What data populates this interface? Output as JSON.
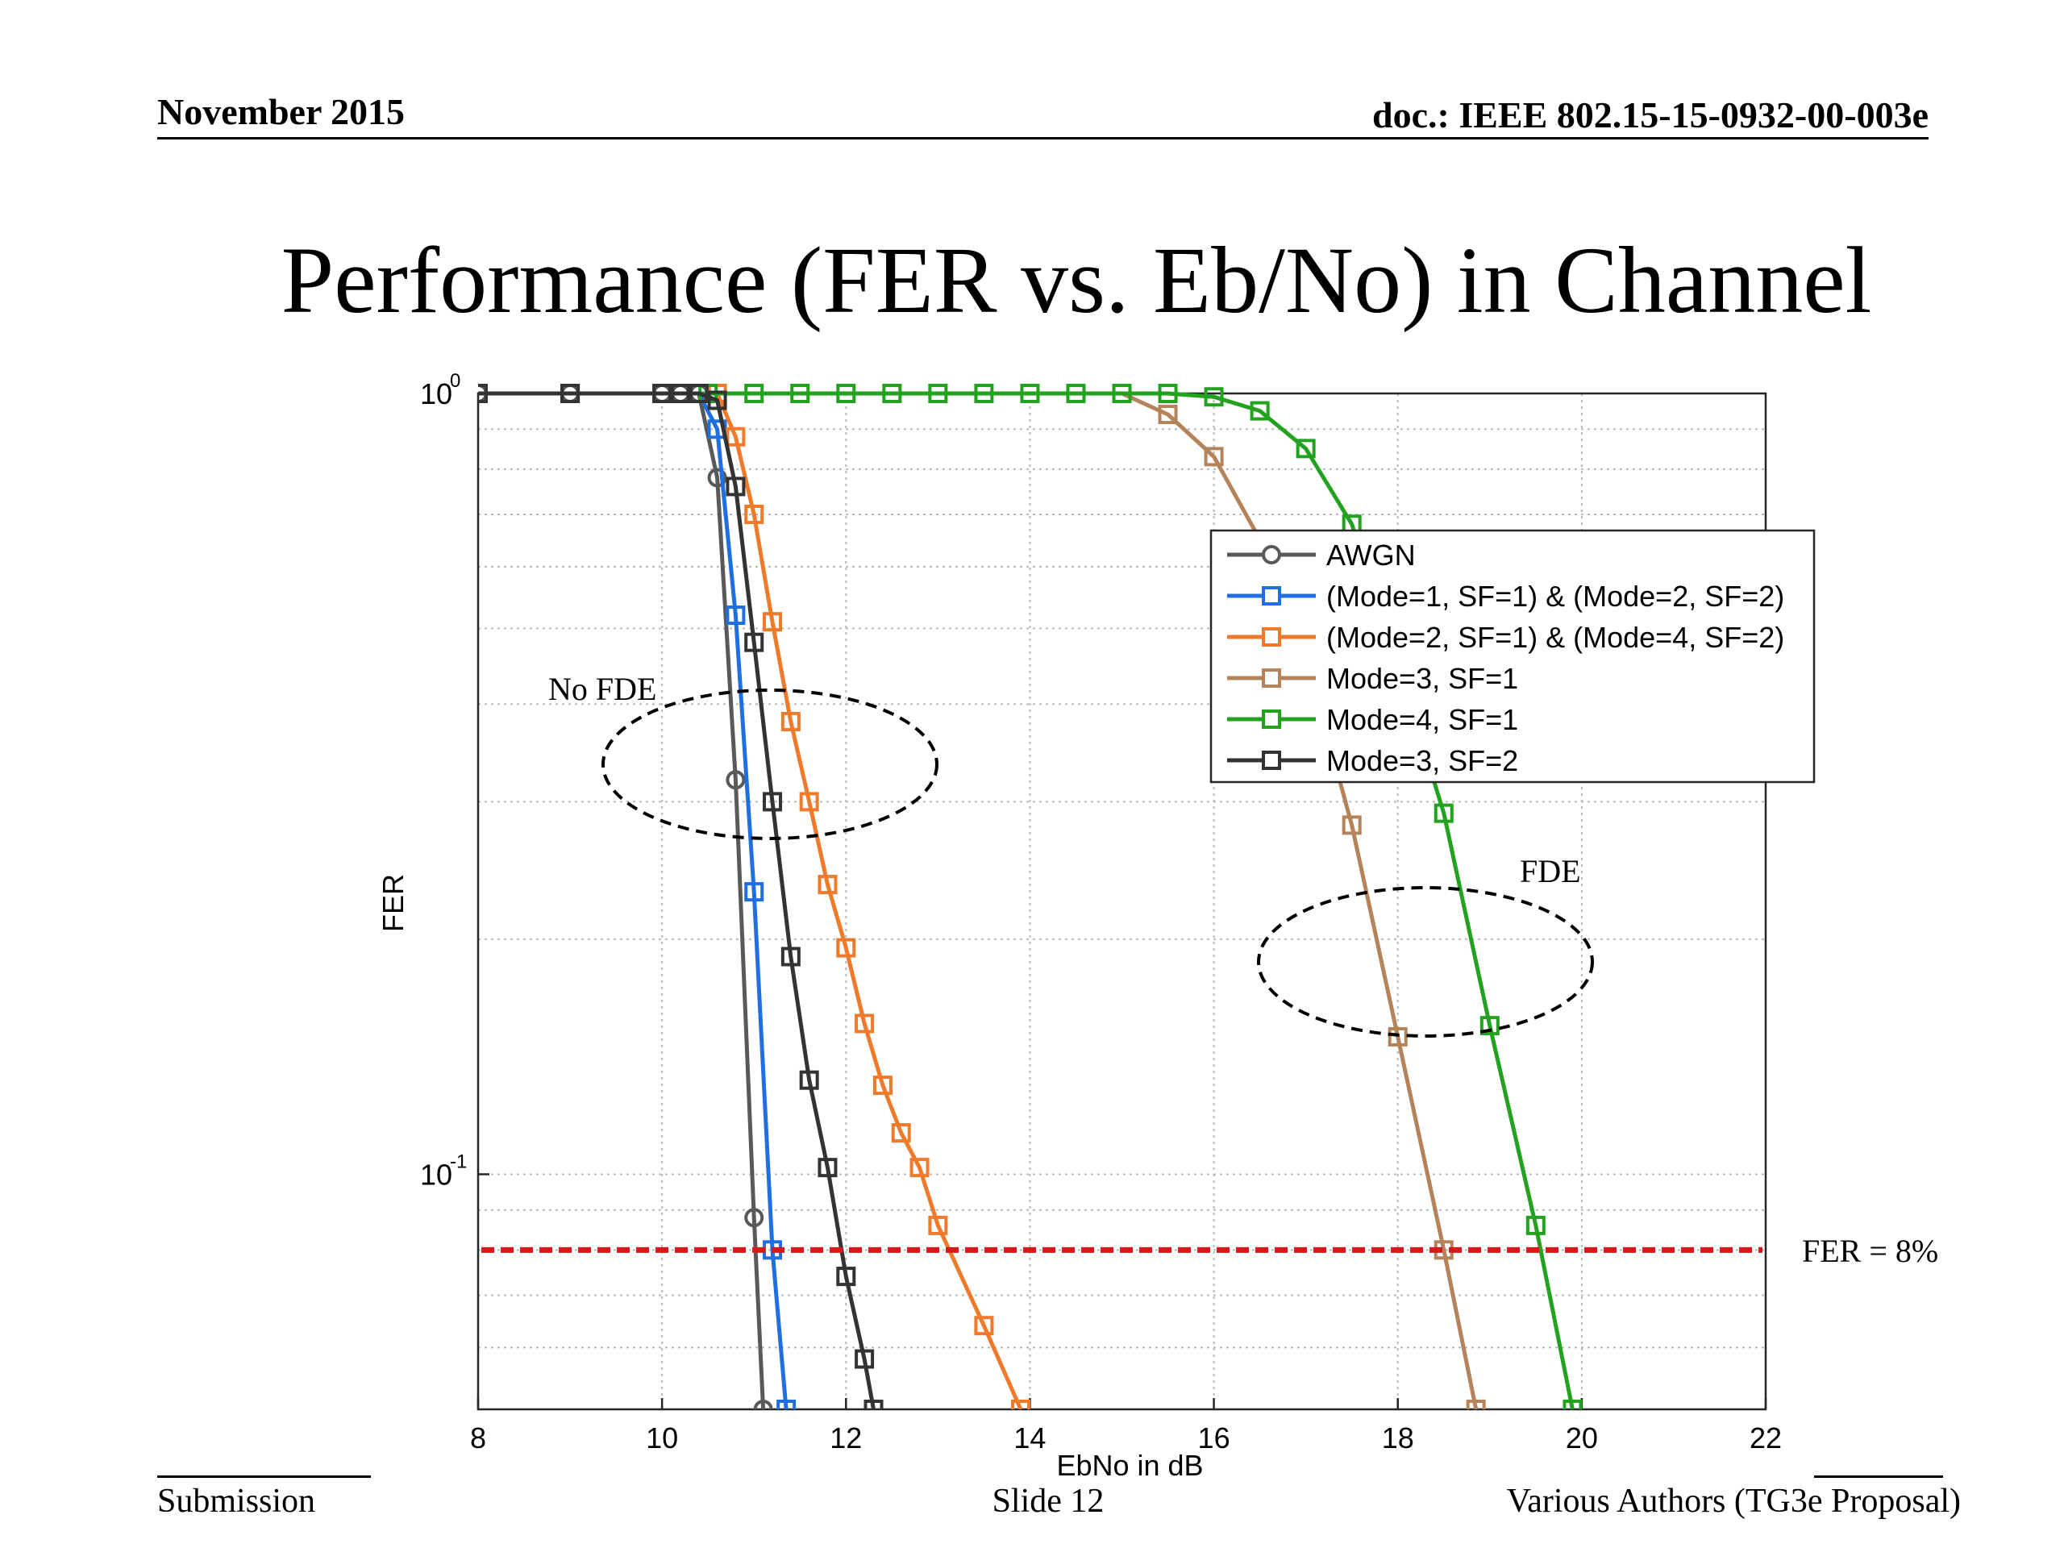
{
  "header": {
    "date": "November 2015",
    "doc": "doc.: IEEE 802.15-15-0932-00-003e"
  },
  "title": "Performance (FER vs. Eb/No) in Channel",
  "footer": {
    "left": "Submission",
    "center": "Slide 12",
    "right": "Various Authors (TG3e Proposal)"
  },
  "chart_data": {
    "type": "line",
    "title": "",
    "xlabel": "EbNo in dB",
    "ylabel": "FER",
    "xlim": [
      8,
      22
    ],
    "ylim": [
      0.05,
      1
    ],
    "yscale": "log",
    "grid": true,
    "legend_position": "top-right",
    "x_ticks": [
      "8",
      "10",
      "12",
      "14",
      "16",
      "18",
      "20",
      "22"
    ],
    "y_ticks": [
      {
        "value": 1,
        "base": "10",
        "exp": "0"
      },
      {
        "value": 0.1,
        "base": "10",
        "exp": "-1"
      }
    ],
    "series": [
      {
        "name": "AWGN",
        "color": "#595959",
        "marker": "circle",
        "points": [
          [
            8,
            1
          ],
          [
            9,
            1
          ],
          [
            10,
            1
          ],
          [
            10.2,
            1
          ],
          [
            10.4,
            1
          ],
          [
            10.6,
            0.78
          ],
          [
            10.8,
            0.32
          ],
          [
            11,
            0.088
          ],
          [
            11.1,
            0.05
          ]
        ]
      },
      {
        "name": "(Mode=1, SF=1) & (Mode=2, SF=2)",
        "color": "#1f6fe0",
        "marker": "square",
        "points": [
          [
            8,
            1
          ],
          [
            9,
            1
          ],
          [
            10,
            1
          ],
          [
            10.2,
            1
          ],
          [
            10.4,
            1
          ],
          [
            10.6,
            0.9
          ],
          [
            10.8,
            0.52
          ],
          [
            11,
            0.23
          ],
          [
            11.2,
            0.08
          ],
          [
            11.35,
            0.05
          ]
        ]
      },
      {
        "name": "(Mode=2, SF=1) & (Mode=4, SF=2)",
        "color": "#ee7a2a",
        "marker": "square",
        "points": [
          [
            8,
            1
          ],
          [
            9,
            1
          ],
          [
            10,
            1
          ],
          [
            10.2,
            1
          ],
          [
            10.4,
            1
          ],
          [
            10.6,
            1
          ],
          [
            10.8,
            0.88
          ],
          [
            11,
            0.7
          ],
          [
            11.2,
            0.51
          ],
          [
            11.4,
            0.38
          ],
          [
            11.6,
            0.3
          ],
          [
            11.8,
            0.235
          ],
          [
            12,
            0.195
          ],
          [
            12.2,
            0.156
          ],
          [
            12.4,
            0.13
          ],
          [
            12.6,
            0.113
          ],
          [
            12.8,
            0.102
          ],
          [
            13,
            0.086
          ],
          [
            13.5,
            0.064
          ],
          [
            13.9,
            0.05
          ]
        ]
      },
      {
        "name": "Mode=3, SF=1",
        "color": "#b5835a",
        "marker": "square",
        "points": [
          [
            8,
            1
          ],
          [
            15,
            1
          ],
          [
            15.5,
            0.94
          ],
          [
            16,
            0.83
          ],
          [
            16.5,
            0.65
          ],
          [
            17,
            0.46
          ],
          [
            17.5,
            0.28
          ],
          [
            18,
            0.15
          ],
          [
            18.5,
            0.08
          ],
          [
            18.85,
            0.05
          ]
        ]
      },
      {
        "name": "Mode=4, SF=1",
        "color": "#22a21f",
        "marker": "square",
        "points": [
          [
            8,
            1
          ],
          [
            10.5,
            1
          ],
          [
            11,
            1
          ],
          [
            11.5,
            1
          ],
          [
            12,
            1
          ],
          [
            12.5,
            1
          ],
          [
            13,
            1
          ],
          [
            13.5,
            1
          ],
          [
            14,
            1
          ],
          [
            14.5,
            1
          ],
          [
            15,
            1
          ],
          [
            15.5,
            1
          ],
          [
            16,
            0.99
          ],
          [
            16.5,
            0.95
          ],
          [
            17,
            0.85
          ],
          [
            17.5,
            0.68
          ],
          [
            18,
            0.45
          ],
          [
            18.5,
            0.29
          ],
          [
            19,
            0.155
          ],
          [
            19.5,
            0.086
          ],
          [
            19.9,
            0.05
          ]
        ]
      },
      {
        "name": "Mode=3, SF=2",
        "color": "#333333",
        "marker": "square",
        "points": [
          [
            8,
            1
          ],
          [
            9,
            1
          ],
          [
            10,
            1
          ],
          [
            10.2,
            1
          ],
          [
            10.4,
            1
          ],
          [
            10.6,
            0.98
          ],
          [
            10.8,
            0.76
          ],
          [
            11,
            0.48
          ],
          [
            11.2,
            0.3
          ],
          [
            11.4,
            0.19
          ],
          [
            11.6,
            0.132
          ],
          [
            11.8,
            0.102
          ],
          [
            12,
            0.074
          ],
          [
            12.2,
            0.058
          ],
          [
            12.3,
            0.05
          ]
        ]
      }
    ],
    "annotations": [
      {
        "text": "No FDE",
        "x": 10.9,
        "y": 0.4
      },
      {
        "text": "FDE",
        "x": 19.6,
        "y": 0.21
      },
      {
        "text": "FER = 8%",
        "y": 0.08
      }
    ],
    "threshold": {
      "y": 0.08,
      "color": "#d61a1a"
    }
  }
}
